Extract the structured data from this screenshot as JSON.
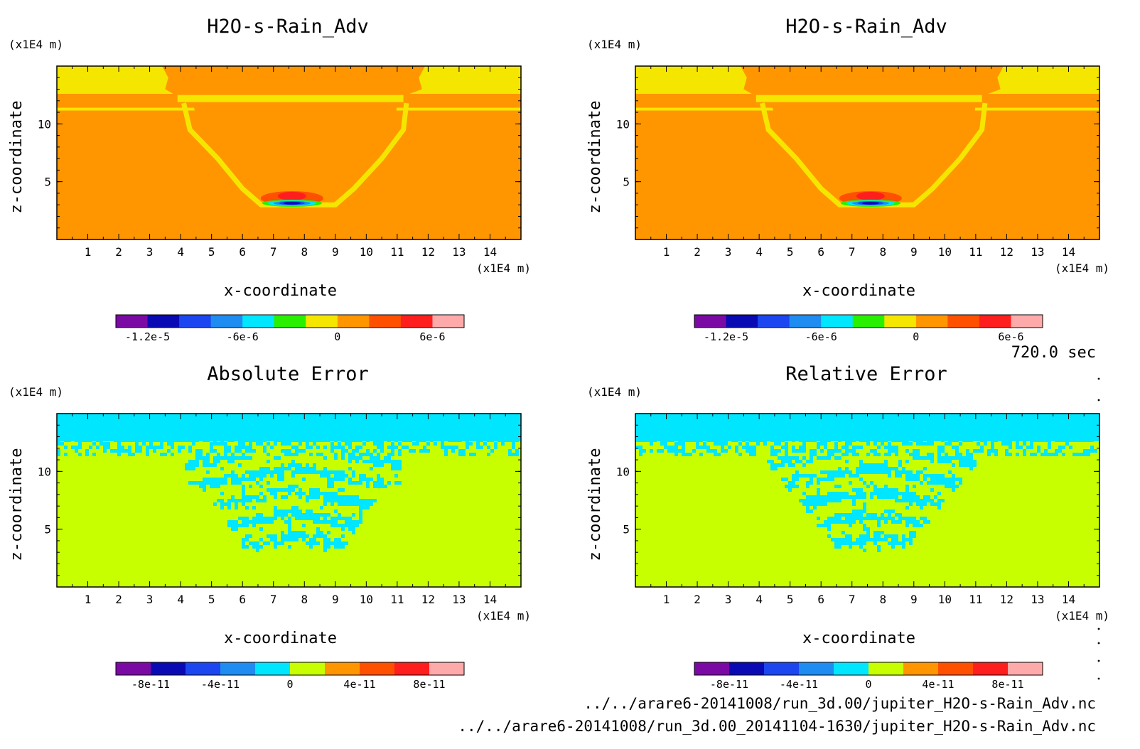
{
  "time_label": "720.0 sec",
  "files": [
    "../../arare6-20141008/run_3d.00/jupiter_H2O-s-Rain_Adv.nc",
    "../../arare6-20141008/run_3d.00_20141104-1630/jupiter_H2O-s-Rain_Adv.nc"
  ],
  "chart_data": [
    {
      "type": "heatmap",
      "title": "H2O-s-Rain_Adv",
      "xlabel": "x-coordinate",
      "ylabel": "z-coordinate",
      "x_unit": "(x1E4 m)",
      "y_unit": "(x1E4 m)",
      "xlim": [
        0,
        15
      ],
      "ylim": [
        0,
        15
      ],
      "x_ticks": [
        "1",
        "2",
        "3",
        "4",
        "5",
        "6",
        "7",
        "8",
        "9",
        "10",
        "11",
        "12",
        "13",
        "14"
      ],
      "y_ticks": [
        "5",
        "10"
      ],
      "colorbar": {
        "colors": [
          "#7b0aa5",
          "#0a0ab4",
          "#1c46f0",
          "#1e8cf0",
          "#00e6ff",
          "#28f000",
          "#f5e600",
          "#ff9600",
          "#ff5000",
          "#ff1e1e",
          "#ffaaaa"
        ],
        "tick_labels": [
          "-1.2e-5",
          "-6e-6",
          "0",
          "6e-6"
        ],
        "tick_values": [
          -1.2e-05,
          -6e-06,
          0,
          6e-06
        ],
        "range": [
          -1.4e-05,
          8e-06
        ]
      },
      "pattern": "rain"
    },
    {
      "type": "heatmap",
      "title": "H2O-s-Rain_Adv",
      "xlabel": "x-coordinate",
      "ylabel": "z-coordinate",
      "x_unit": "(x1E4 m)",
      "y_unit": "(x1E4 m)",
      "xlim": [
        0,
        15
      ],
      "ylim": [
        0,
        15
      ],
      "x_ticks": [
        "1",
        "2",
        "3",
        "4",
        "5",
        "6",
        "7",
        "8",
        "9",
        "10",
        "11",
        "12",
        "13",
        "14"
      ],
      "y_ticks": [
        "5",
        "10"
      ],
      "colorbar": {
        "colors": [
          "#7b0aa5",
          "#0a0ab4",
          "#1c46f0",
          "#1e8cf0",
          "#00e6ff",
          "#28f000",
          "#f5e600",
          "#ff9600",
          "#ff5000",
          "#ff1e1e",
          "#ffaaaa"
        ],
        "tick_labels": [
          "-1.2e-5",
          "-6e-6",
          "0",
          "6e-6"
        ],
        "tick_values": [
          -1.2e-05,
          -6e-06,
          0,
          6e-06
        ],
        "range": [
          -1.4e-05,
          8e-06
        ]
      },
      "pattern": "rain"
    },
    {
      "type": "heatmap",
      "title": "Absolute Error",
      "xlabel": "x-coordinate",
      "ylabel": "z-coordinate",
      "x_unit": "(x1E4 m)",
      "y_unit": "(x1E4 m)",
      "xlim": [
        0,
        15
      ],
      "ylim": [
        0,
        15
      ],
      "x_ticks": [
        "1",
        "2",
        "3",
        "4",
        "5",
        "6",
        "7",
        "8",
        "9",
        "10",
        "11",
        "12",
        "13",
        "14"
      ],
      "y_ticks": [
        "5",
        "10"
      ],
      "colorbar": {
        "colors": [
          "#7b0aa5",
          "#0a0ab4",
          "#1c46f0",
          "#1e8cf0",
          "#00e6ff",
          "#c8ff00",
          "#ff9600",
          "#ff5000",
          "#ff1e1e",
          "#ffaaaa"
        ],
        "tick_labels": [
          "-8e-11",
          "-4e-11",
          "0",
          "4e-11",
          "8e-11"
        ],
        "tick_values": [
          -8e-11,
          -4e-11,
          0,
          4e-11,
          8e-11
        ],
        "range": [
          -1e-10,
          1e-10
        ]
      },
      "pattern": "abs_error"
    },
    {
      "type": "heatmap",
      "title": "Relative Error",
      "xlabel": "x-coordinate",
      "ylabel": "z-coordinate",
      "x_unit": "(x1E4 m)",
      "y_unit": "(x1E4 m)",
      "xlim": [
        0,
        15
      ],
      "ylim": [
        0,
        15
      ],
      "x_ticks": [
        "1",
        "2",
        "3",
        "4",
        "5",
        "6",
        "7",
        "8",
        "9",
        "10",
        "11",
        "12",
        "13",
        "14"
      ],
      "y_ticks": [
        "5",
        "10"
      ],
      "colorbar": {
        "colors": [
          "#7b0aa5",
          "#0a0ab4",
          "#1c46f0",
          "#1e8cf0",
          "#00e6ff",
          "#c8ff00",
          "#ff9600",
          "#ff5000",
          "#ff1e1e",
          "#ffaaaa"
        ],
        "tick_labels": [
          "-8e-11",
          "-4e-11",
          "0",
          "4e-11",
          "8e-11"
        ],
        "tick_values": [
          -8e-11,
          -4e-11,
          0,
          4e-11,
          8e-11
        ],
        "range": [
          -1e-10,
          1e-10
        ]
      },
      "pattern": "rel_error"
    }
  ]
}
